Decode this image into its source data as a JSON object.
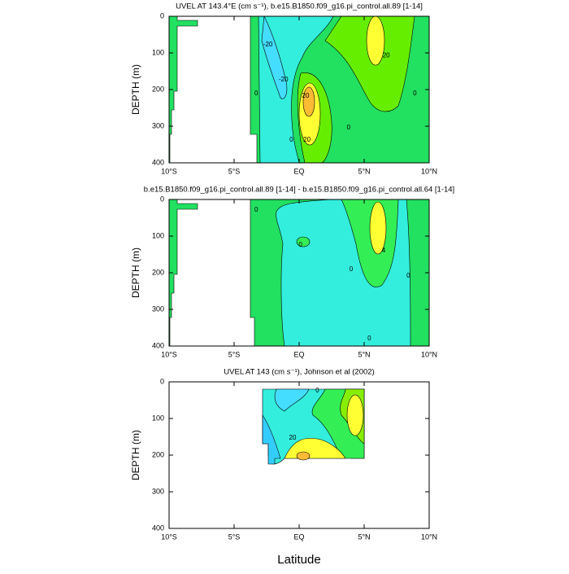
{
  "chart_data": [
    {
      "type": "contour",
      "title": "UVEL AT 143.4°E (cm s⁻¹), b.e15.B1850.f09_g16.pi_control.all.89 [1-14]",
      "ylabel": "DEPTH (m)",
      "xlim": [
        -10,
        10
      ],
      "ylim": [
        400,
        0
      ],
      "xticks": [
        {
          "value": -10,
          "label": "10°S"
        },
        {
          "value": -5,
          "label": "5°S"
        },
        {
          "value": 0,
          "label": "EQ"
        },
        {
          "value": 5,
          "label": "5°N"
        },
        {
          "value": 10,
          "label": "10°N"
        }
      ],
      "yticks": [
        0,
        100,
        200,
        300,
        400
      ],
      "contour_labels": [
        {
          "level": -20,
          "lat": -2.4,
          "depth": 78
        },
        {
          "level": -20,
          "lat": -1.2,
          "depth": 173
        },
        {
          "level": 0,
          "lat": -3.3,
          "depth": 211
        },
        {
          "level": 20,
          "lat": 0.5,
          "depth": 218
        },
        {
          "level": 20,
          "lat": 0.6,
          "depth": 338
        },
        {
          "level": 0,
          "lat": -0.6,
          "depth": 338
        },
        {
          "level": 0,
          "lat": 3.8,
          "depth": 304
        },
        {
          "level": 20,
          "lat": 6.7,
          "depth": 107
        },
        {
          "level": 0,
          "lat": 8.9,
          "depth": 211
        }
      ]
    },
    {
      "type": "contour",
      "title": "b.e15.B1850.f09_g16.pi_control.all.89 [1-14] - b.e15.B1850.f09_g16.pi_control.all.64 [1-14]",
      "ylabel": "DEPTH (m)",
      "xlim": [
        -10,
        10
      ],
      "ylim": [
        400,
        0
      ],
      "xticks": [
        {
          "value": -10,
          "label": "10°S"
        },
        {
          "value": -5,
          "label": "5°S"
        },
        {
          "value": 0,
          "label": "EQ"
        },
        {
          "value": 5,
          "label": "5°N"
        },
        {
          "value": 10,
          "label": "10°N"
        }
      ],
      "yticks": [
        0,
        100,
        200,
        300,
        400
      ],
      "contour_labels": [
        {
          "level": 0,
          "lat": -3.3,
          "depth": 29
        },
        {
          "level": 0,
          "lat": 0.1,
          "depth": 124
        },
        {
          "level": 4,
          "lat": 6.5,
          "depth": 140
        },
        {
          "level": 0,
          "lat": 4,
          "depth": 191
        },
        {
          "level": 0,
          "lat": 8.4,
          "depth": 209
        },
        {
          "level": 0,
          "lat": 5.4,
          "depth": 380
        }
      ]
    },
    {
      "type": "contour",
      "title": "UVEL AT 143 (cm s⁻¹), Johnson et al (2002)",
      "ylabel": "DEPTH (m)",
      "xlabel": "Latitude",
      "xlim": [
        -10,
        10
      ],
      "ylim": [
        400,
        0
      ],
      "xticks": [
        {
          "value": -10,
          "label": "10°S"
        },
        {
          "value": -5,
          "label": "5°S"
        },
        {
          "value": 0,
          "label": "EQ"
        },
        {
          "value": 5,
          "label": "5°N"
        },
        {
          "value": 10,
          "label": "10°N"
        }
      ],
      "yticks": [
        0,
        100,
        200,
        300,
        400
      ],
      "contour_labels": [
        {
          "level": 20,
          "lat": -0.5,
          "depth": 153
        },
        {
          "level": 0,
          "lat": 1.4,
          "depth": 24
        }
      ]
    }
  ]
}
